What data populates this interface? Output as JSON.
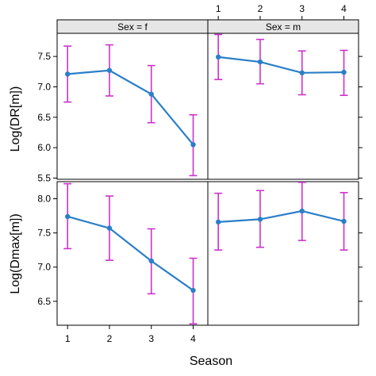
{
  "chart_data": {
    "type": "line",
    "xlabel": "Season",
    "x": [
      1,
      2,
      3,
      4
    ],
    "x_ticks": [
      "1",
      "2",
      "3",
      "4"
    ],
    "colors": {
      "line": "#2a7fc8",
      "point": "#2a7fc8",
      "errorbar": "#cc33cc",
      "strip_bg": "#e6e6e6"
    },
    "strip_labels": [
      "Sex = f",
      "Sex = m"
    ],
    "rows": [
      {
        "ylabel": "Log(DR[m])",
        "ylim": [
          5.48,
          7.88
        ],
        "y_ticks": [
          "5.5",
          "6.0",
          "6.5",
          "7.0",
          "7.5"
        ],
        "y_tick_values": [
          5.5,
          6.0,
          6.5,
          7.0,
          7.5
        ],
        "panels": [
          {
            "sex": "f",
            "mean": [
              7.21,
              7.27,
              6.88,
              6.05
            ],
            "lower": [
              6.75,
              6.85,
              6.41,
              5.54
            ],
            "upper": [
              7.67,
              7.69,
              7.35,
              6.54
            ]
          },
          {
            "sex": "m",
            "mean": [
              7.49,
              7.41,
              7.23,
              7.24
            ],
            "lower": [
              7.12,
              7.05,
              6.87,
              6.86
            ],
            "upper": [
              7.86,
              7.78,
              7.59,
              7.6
            ]
          }
        ]
      },
      {
        "ylabel": "Log(Dmax[m])",
        "ylim": [
          6.15,
          8.25
        ],
        "y_ticks": [
          "6.5",
          "7.0",
          "7.5",
          "8.0"
        ],
        "y_tick_values": [
          6.5,
          7.0,
          7.5,
          8.0
        ],
        "panels": [
          {
            "sex": "f",
            "mean": [
              7.74,
              7.57,
              7.09,
              6.66
            ],
            "lower": [
              7.27,
              7.1,
              6.61,
              6.17
            ],
            "upper": [
              8.22,
              8.04,
              7.56,
              7.13
            ]
          },
          {
            "sex": "m",
            "mean": [
              7.66,
              7.7,
              7.82,
              7.67
            ],
            "lower": [
              7.25,
              7.29,
              7.39,
              7.25
            ],
            "upper": [
              8.08,
              8.12,
              8.24,
              8.09
            ]
          }
        ]
      }
    ]
  }
}
